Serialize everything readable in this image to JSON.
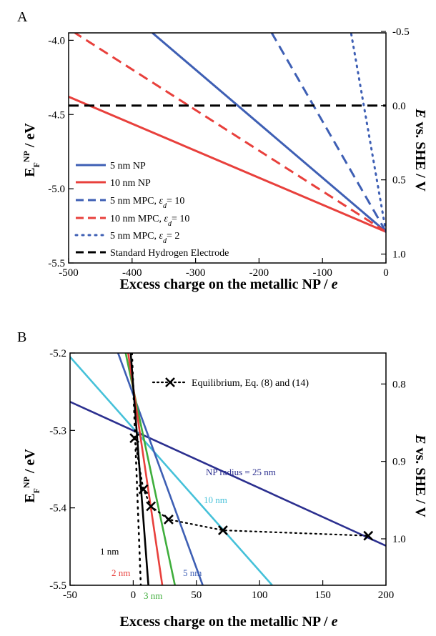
{
  "chart_data": [
    {
      "panel": "A",
      "type": "line",
      "xlabel": "Excess charge on the metallic NP / e",
      "ylabel": "E_F^NP / eV",
      "y2label": "E vs. SHE / V",
      "xlim": [
        -500,
        0
      ],
      "ylim": [
        -5.5,
        -3.95
      ],
      "y2lim_at_ylim": [
        1.06,
        -0.49
      ],
      "xticks": [
        "-500",
        "-400",
        "-300",
        "-200",
        "-100",
        "0"
      ],
      "yticks": [
        "-5.5",
        "-5.0",
        "-4.5",
        "-4.0"
      ],
      "y2ticks": [
        "1.0",
        "0.5",
        "0.0",
        "-0.5"
      ],
      "legend_position": "bottom-left",
      "series": [
        {
          "name": "5 nm NP",
          "style": "solid",
          "color": "#3e5fb4",
          "x": [
            0,
            -368
          ],
          "y": [
            -5.29,
            -3.95
          ]
        },
        {
          "name": "10 nm NP",
          "style": "solid",
          "color": "#e8403c",
          "x": [
            0,
            -500
          ],
          "y": [
            -5.29,
            -4.38
          ]
        },
        {
          "name": "5 nm MPC, εd= 10",
          "name_parts": [
            "5 nm MPC, ",
            "ε",
            "d",
            "= 10"
          ],
          "style": "dashed",
          "color": "#3e5fb4",
          "x": [
            0,
            -180
          ],
          "y": [
            -5.29,
            -3.95
          ]
        },
        {
          "name": "10 nm MPC, εd= 10",
          "name_parts": [
            "10 nm MPC, ",
            "ε",
            "d",
            "= 10"
          ],
          "style": "dashed",
          "color": "#e8403c",
          "x": [
            0,
            -490
          ],
          "y": [
            -5.29,
            -3.95
          ]
        },
        {
          "name": "5 nm MPC, εd= 2",
          "name_parts": [
            "5 nm MPC, ",
            "ε",
            "d",
            "= 2"
          ],
          "style": "dotted",
          "color": "#3e5fb4",
          "x": [
            0,
            -55
          ],
          "y": [
            -5.29,
            -3.95
          ]
        },
        {
          "name": "Standard Hydrogen Electrode",
          "style": "dashed",
          "color": "#000000",
          "x": [
            -500,
            0
          ],
          "y": [
            -4.44,
            -4.44
          ]
        }
      ]
    },
    {
      "panel": "B",
      "type": "line",
      "xlabel": "Excess charge on the metallic NP / e",
      "ylabel": "E_F^NP / eV",
      "y2label": "E vs. SHE / V",
      "xlim": [
        -50,
        200
      ],
      "ylim": [
        -5.5,
        -5.2
      ],
      "y2lim_at_ylim": [
        1.06,
        0.76
      ],
      "xticks": [
        "-50",
        "0",
        "50",
        "100",
        "150",
        "200"
      ],
      "yticks": [
        "-5.5",
        "-5.4",
        "-5.3",
        "-5.2"
      ],
      "y2ticks": [
        "1.0",
        "0.9",
        "0.8"
      ],
      "legend_position": "top-right",
      "series": [
        {
          "label": "NP radius = 25 nm",
          "color": "#2b2f8f",
          "x": [
            -50,
            200
          ],
          "y": [
            -5.263,
            -5.449
          ]
        },
        {
          "label": "10 nm",
          "color": "#45c1d9",
          "x": [
            -50,
            110
          ],
          "y": [
            -5.205,
            -5.5
          ]
        },
        {
          "label": "5 nm",
          "color": "#3e5fb4",
          "x": [
            -12,
            55
          ],
          "y": [
            -5.2,
            -5.5
          ]
        },
        {
          "label": "3 nm",
          "color": "#3fae3c",
          "x": [
            -6,
            33
          ],
          "y": [
            -5.2,
            -5.5
          ]
        },
        {
          "label": "2 nm",
          "color": "#e8403c",
          "x": [
            -4,
            23
          ],
          "y": [
            -5.2,
            -5.5
          ]
        },
        {
          "label": "1 nm",
          "color": "#000000",
          "x": [
            -2,
            12
          ],
          "y": [
            -5.2,
            -5.5
          ]
        },
        {
          "label": "dotted-black",
          "color": "#000000",
          "x": [
            -1,
            6
          ],
          "y": [
            -5.2,
            -5.5
          ]
        }
      ],
      "equilibrium": {
        "legend": "Equilibrium, Eq. (8) and (14)",
        "x": [
          1,
          8,
          14,
          28,
          71,
          186
        ],
        "y": [
          -5.31,
          -5.376,
          -5.398,
          -5.415,
          -5.429,
          -5.436
        ]
      }
    }
  ]
}
